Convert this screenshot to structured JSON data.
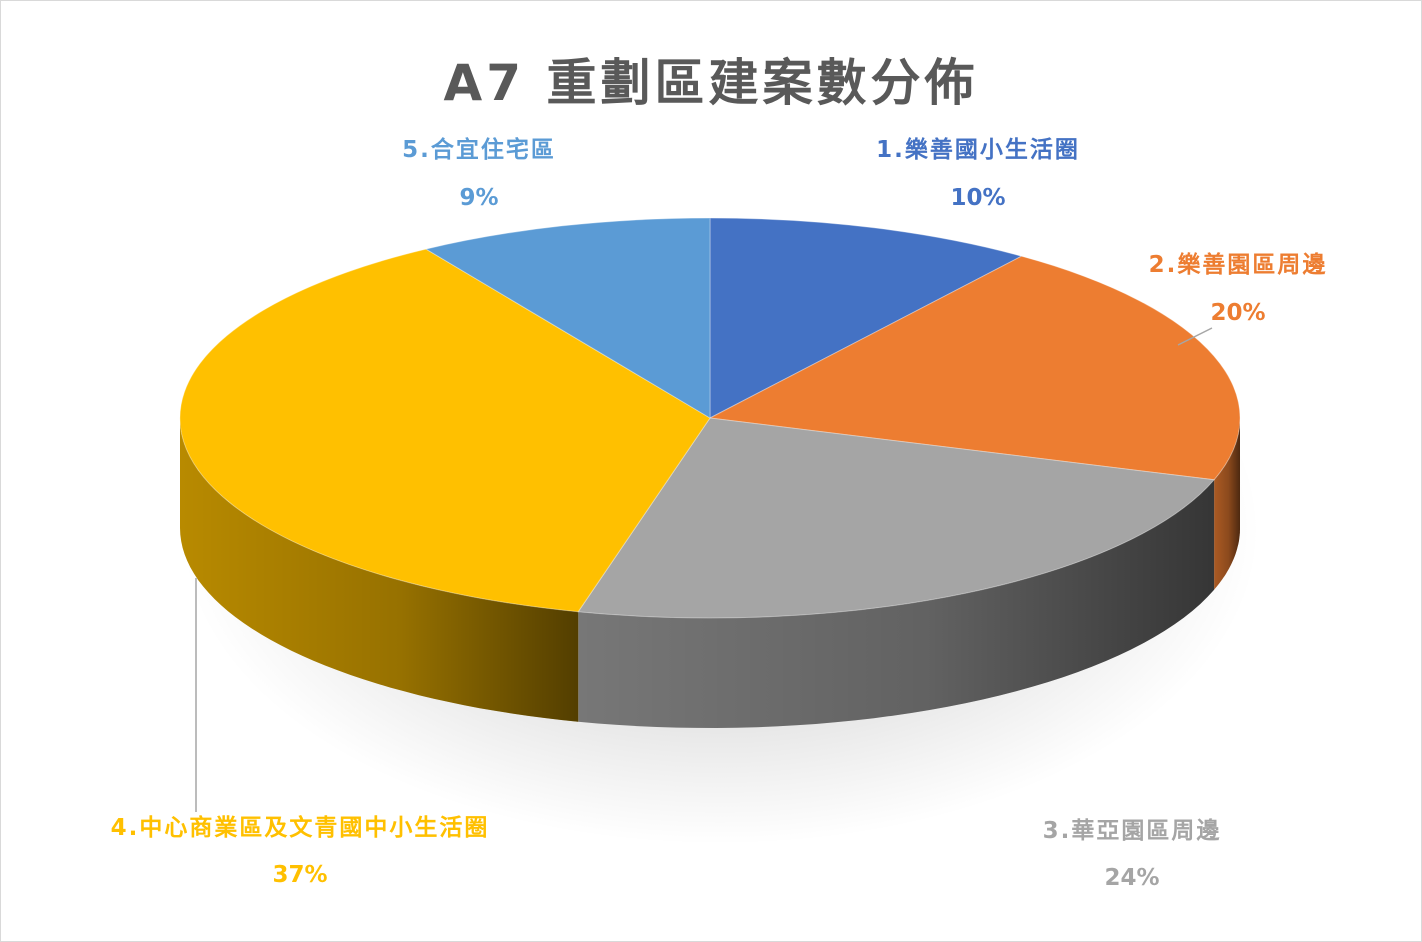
{
  "chart_data": {
    "type": "pie",
    "title": "A7 重劃區建案數分佈",
    "slices": [
      {
        "label": "1.樂善國小生活圈",
        "percent": "10%",
        "value": 10,
        "color": "#4472C4"
      },
      {
        "label": "2.樂善園區周邊",
        "percent": "20%",
        "value": 20,
        "color": "#ED7D31"
      },
      {
        "label": "3.華亞園區周邊",
        "percent": "24%",
        "value": 24,
        "color": "#A5A5A5"
      },
      {
        "label": "4.中心商業區及文青國中小生活圈",
        "percent": "37%",
        "value": 37,
        "color": "#FFC000"
      },
      {
        "label": "5.合宜住宅區",
        "percent": "9%",
        "value": 9,
        "color": "#5B9BD5"
      }
    ],
    "legend": "none",
    "style": "3d-pie"
  }
}
